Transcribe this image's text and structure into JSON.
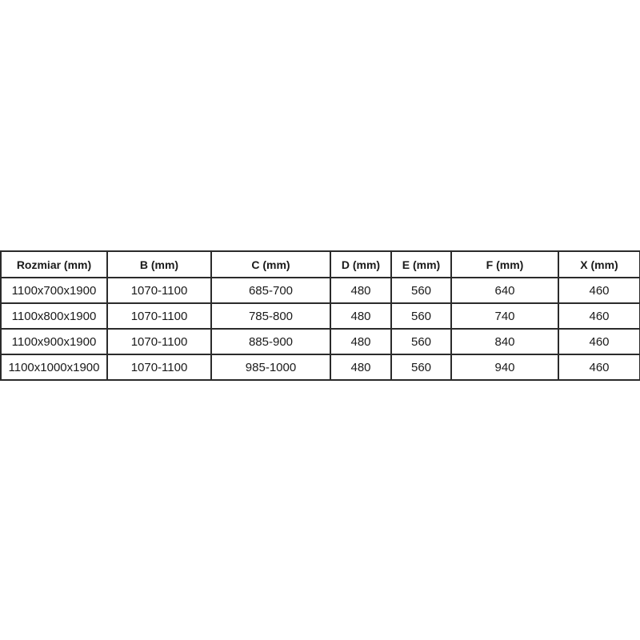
{
  "table": {
    "name": "shower-enclosure-dimensions",
    "headers": [
      "Rozmiar (mm)",
      "B (mm)",
      "C (mm)",
      "D (mm)",
      "E (mm)",
      "F (mm)",
      "X (mm)"
    ],
    "rows": [
      [
        "1100x700x1900",
        "1070-1100",
        "685-700",
        "480",
        "560",
        "640",
        "460"
      ],
      [
        "1100x800x1900",
        "1070-1100",
        "785-800",
        "480",
        "560",
        "740",
        "460"
      ],
      [
        "1100x900x1900",
        "1070-1100",
        "885-900",
        "480",
        "560",
        "840",
        "460"
      ],
      [
        "1100x1000x1900",
        "1070-1100",
        "985-1000",
        "480",
        "560",
        "940",
        "460"
      ]
    ]
  },
  "colors": {
    "border": "#2b2b2b",
    "text": "#1a1a1a",
    "background": "#ffffff"
  }
}
